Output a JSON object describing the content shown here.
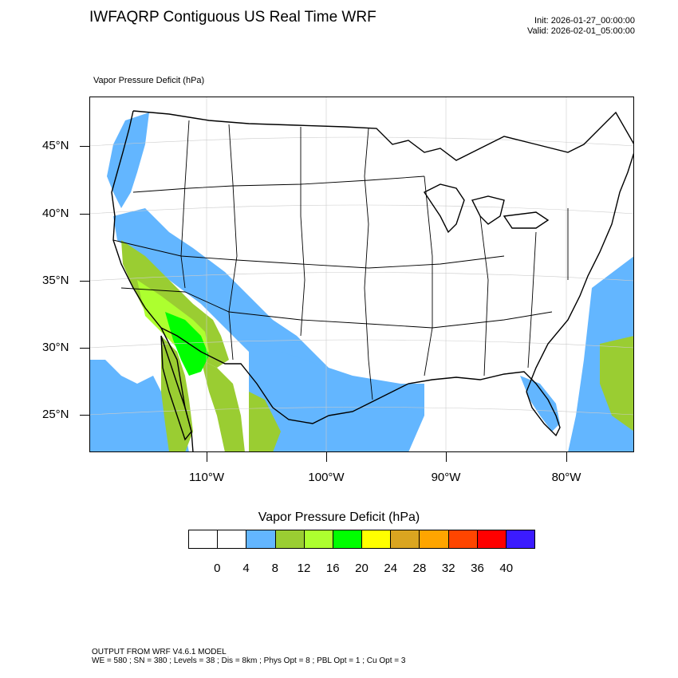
{
  "header": {
    "title": "IWFAQRP Contiguous US Real Time WRF",
    "init": "Init: 2026-01-27_00:00:00",
    "valid": "Valid: 2026-02-01_05:00:00"
  },
  "map": {
    "field_label": "Vapor Pressure Deficit   (hPa)",
    "lat_labels": [
      "45°N",
      "40°N",
      "35°N",
      "30°N",
      "25°N"
    ],
    "lon_labels": [
      "110°W",
      "100°W",
      "90°W",
      "80°W"
    ],
    "colors": {
      "ocean_blue": "#63b6ff",
      "olive": "#9acd32",
      "light_green": "#adff2f",
      "green": "#00ff00",
      "land": "#ffffff",
      "boundary": "#000000"
    }
  },
  "colorbar": {
    "title": "Vapor Pressure Deficit  (hPa)",
    "colors": [
      "#ffffff",
      "#ffffff",
      "#63b6ff",
      "#9acd32",
      "#adff2f",
      "#00ff00",
      "#ffff00",
      "#daa520",
      "#ffa500",
      "#ff4500",
      "#ff0000",
      "#3b1bff"
    ],
    "labels": [
      "0",
      "4",
      "8",
      "12",
      "16",
      "20",
      "24",
      "28",
      "32",
      "36",
      "40"
    ]
  },
  "footer": {
    "line1": "OUTPUT FROM WRF V4.6.1 MODEL",
    "line2": "WE = 580 ; SN = 380 ; Levels = 38 ; Dis = 8km ; Phys Opt = 8 ; PBL Opt = 1 ; Cu Opt = 3"
  }
}
